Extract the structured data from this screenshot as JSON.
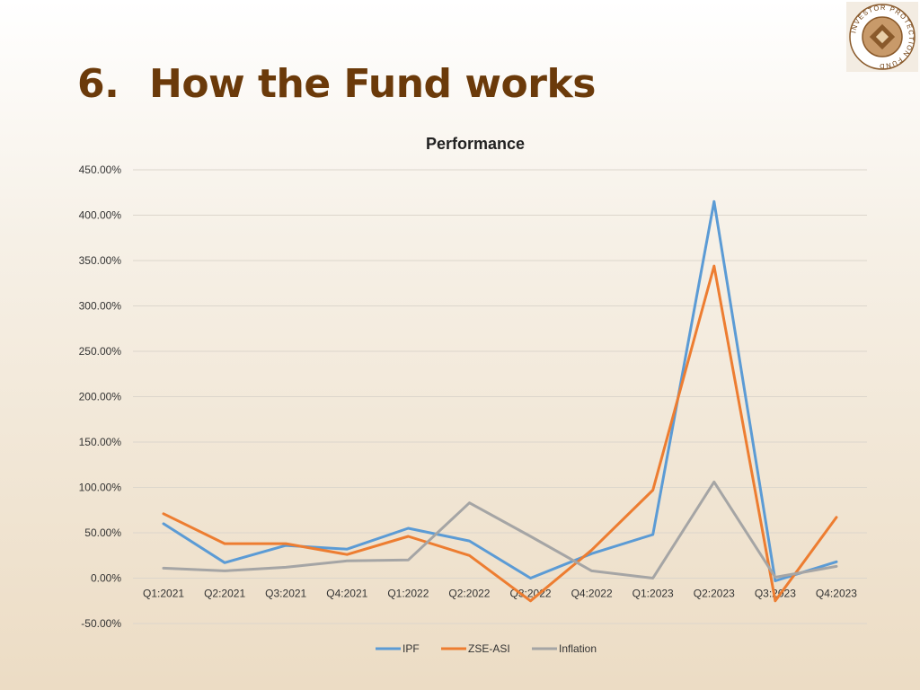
{
  "slide": {
    "number": "6.",
    "title": "How the Fund works"
  },
  "logo": {
    "icon": "ipf-seal-icon",
    "text": "INVESTOR PROTECTION FUND"
  },
  "chart_data": {
    "type": "line",
    "title": "Performance",
    "categories": [
      "Q1:2021",
      "Q2:2021",
      "Q3:2021",
      "Q4:2021",
      "Q1:2022",
      "Q2:2022",
      "Q3:2022",
      "Q4:2022",
      "Q1:2023",
      "Q2:2023",
      "Q3:2023",
      "Q4:2023"
    ],
    "series": [
      {
        "name": "IPF",
        "color": "#5b9bd5",
        "values": [
          60,
          17,
          36,
          32,
          55,
          41,
          0,
          27,
          48,
          415,
          -3,
          18
        ]
      },
      {
        "name": "ZSE-ASI",
        "color": "#ed7d31",
        "values": [
          71,
          38,
          38,
          26,
          46,
          25,
          -25,
          31,
          97,
          344,
          -25,
          67
        ]
      },
      {
        "name": "Inflation",
        "color": "#a5a5a5",
        "values": [
          11,
          8,
          12,
          19,
          20,
          83,
          46,
          8,
          0,
          106,
          1,
          13
        ]
      }
    ],
    "yticks": [
      "450.00%",
      "400.00%",
      "350.00%",
      "300.00%",
      "250.00%",
      "200.00%",
      "150.00%",
      "100.00%",
      "50.00%",
      "0.00%",
      "-50.00%"
    ],
    "ylim": [
      -50,
      450
    ],
    "grid": true,
    "legend": "bottom"
  }
}
